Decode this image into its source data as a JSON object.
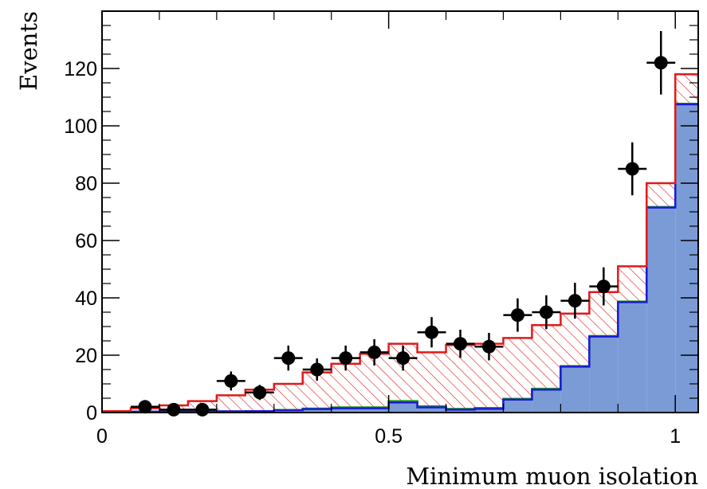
{
  "chart_data": {
    "type": "histogram",
    "xlabel": "Minimum muon isolation",
    "ylabel": "Events",
    "xlim": [
      0,
      1.04
    ],
    "ylim": [
      0,
      140
    ],
    "x_ticks": [
      "0",
      "0.5",
      "1"
    ],
    "y_ticks": [
      "0",
      "20",
      "40",
      "60",
      "80",
      "100",
      "120"
    ],
    "bin_edges": [
      0,
      0.05,
      0.1,
      0.15,
      0.2,
      0.25,
      0.3,
      0.35,
      0.4,
      0.45,
      0.5,
      0.55,
      0.6,
      0.65,
      0.7,
      0.75,
      0.8,
      0.85,
      0.9,
      0.95,
      1.0
    ],
    "series": [
      {
        "kind": "filled",
        "color_fill": "#7b9bd6",
        "color_line": "#1a1ad6",
        "values": [
          0.3,
          0.3,
          0.3,
          0.3,
          0.4,
          0.5,
          0.8,
          1.2,
          1.5,
          1.5,
          3.5,
          1.8,
          1.0,
          1.3,
          4.5,
          8,
          16,
          26.5,
          38.5,
          71.5,
          107.5
        ]
      },
      {
        "kind": "line",
        "color_line": "#1a9a1a",
        "values": [
          0.3,
          0.3,
          0.3,
          0.3,
          0.4,
          0.5,
          0.9,
          1.4,
          1.8,
          1.8,
          4.0,
          2.2,
          1.3,
          1.6,
          4.8,
          8.3,
          16.2,
          26.7,
          38.7,
          71.7,
          107.7
        ]
      },
      {
        "kind": "total",
        "color_line": "#e01a1a",
        "values": [
          0.5,
          1.5,
          2.5,
          4,
          6,
          8,
          10,
          14,
          17,
          20.5,
          24,
          21,
          23.5,
          24,
          26,
          30.5,
          34.5,
          42,
          51,
          80,
          118
        ]
      }
    ],
    "data_points": [
      {
        "x": 0.075,
        "y": 2
      },
      {
        "x": 0.125,
        "y": 1
      },
      {
        "x": 0.175,
        "y": 1
      },
      {
        "x": 0.225,
        "y": 11
      },
      {
        "x": 0.275,
        "y": 7
      },
      {
        "x": 0.325,
        "y": 19
      },
      {
        "x": 0.375,
        "y": 15
      },
      {
        "x": 0.425,
        "y": 19
      },
      {
        "x": 0.475,
        "y": 21
      },
      {
        "x": 0.525,
        "y": 19
      },
      {
        "x": 0.575,
        "y": 28
      },
      {
        "x": 0.625,
        "y": 24
      },
      {
        "x": 0.675,
        "y": 23
      },
      {
        "x": 0.725,
        "y": 34
      },
      {
        "x": 0.775,
        "y": 35
      },
      {
        "x": 0.825,
        "y": 39
      },
      {
        "x": 0.875,
        "y": 44
      },
      {
        "x": 0.925,
        "y": 85
      },
      {
        "x": 0.975,
        "y": 122
      }
    ]
  }
}
